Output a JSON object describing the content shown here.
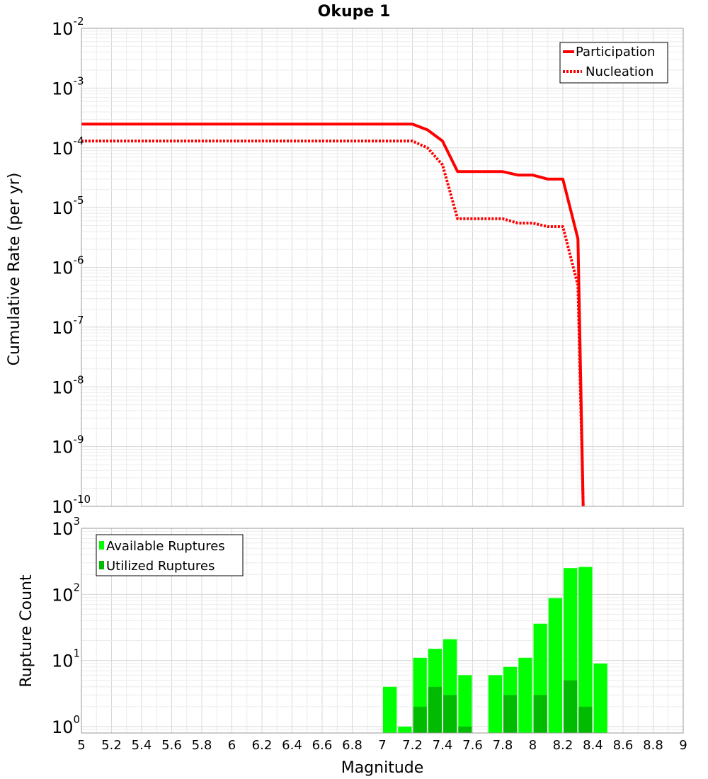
{
  "chart_data": [
    {
      "type": "line",
      "title": "Okupe 1",
      "xlabel": "",
      "ylabel": "Cumulative Rate (per yr)",
      "yscale": "log",
      "xlim": [
        5,
        9
      ],
      "ylim": [
        1e-10,
        0.01
      ],
      "y_tick_bases": [
        "10",
        "10",
        "10",
        "10",
        "10",
        "10",
        "10",
        "10",
        "10"
      ],
      "y_tick_exponents": [
        "-2",
        "-3",
        "-4",
        "-5",
        "-6",
        "-7",
        "-8",
        "-9",
        "-10"
      ],
      "y_tick_values": [
        0.01,
        0.001,
        0.0001,
        1e-05,
        1e-06,
        1e-07,
        1e-08,
        1e-09,
        1e-10
      ],
      "legend_position": "top-right",
      "series": [
        {
          "name": "Participation",
          "color": "#ff0000",
          "style": "solid",
          "x": [
            5.0,
            7.2,
            7.3,
            7.4,
            7.5,
            7.6,
            7.7,
            7.8,
            7.9,
            8.0,
            8.1,
            8.2,
            8.3,
            8.335
          ],
          "y": [
            0.00025,
            0.00025,
            0.0002,
            0.00013,
            4e-05,
            4e-05,
            4e-05,
            4e-05,
            3.5e-05,
            3.5e-05,
            3e-05,
            3e-05,
            3e-06,
            1e-10
          ]
        },
        {
          "name": "Nucleation",
          "color": "#ff0000",
          "style": "dotted",
          "x": [
            5.0,
            7.2,
            7.3,
            7.4,
            7.5,
            7.6,
            7.7,
            7.8,
            7.9,
            8.0,
            8.1,
            8.2,
            8.3,
            8.335
          ],
          "y": [
            0.00013,
            0.00013,
            0.0001,
            5.2e-05,
            6.5e-06,
            6.5e-06,
            6.5e-06,
            6.5e-06,
            5.5e-06,
            5.5e-06,
            4.8e-06,
            4.8e-06,
            5e-07,
            1e-10
          ]
        }
      ]
    },
    {
      "type": "bar",
      "xlabel": "Magnitude",
      "ylabel": "Rupture Count",
      "yscale": "log",
      "xlim": [
        5,
        9
      ],
      "ylim": [
        0.8,
        1000
      ],
      "y_tick_bases": [
        "10",
        "10",
        "10",
        "10"
      ],
      "y_tick_exponents": [
        "3",
        "2",
        "1",
        "0"
      ],
      "y_tick_values": [
        1000,
        100,
        10,
        1
      ],
      "x_ticks": [
        "5",
        "5.2",
        "5.4",
        "5.6",
        "5.8",
        "6",
        "6.2",
        "6.4",
        "6.6",
        "6.8",
        "7",
        "7.2",
        "7.4",
        "7.6",
        "7.8",
        "8",
        "8.2",
        "8.4",
        "8.6",
        "8.8",
        "9"
      ],
      "legend_position": "top-left",
      "bin_width": 0.1,
      "series": [
        {
          "name": "Available Ruptures",
          "color": "#00ff00",
          "x": [
            7.05,
            7.15,
            7.25,
            7.35,
            7.45,
            7.55,
            7.75,
            7.85,
            7.95,
            8.05,
            8.15,
            8.25,
            8.35,
            8.45
          ],
          "values": [
            4,
            1,
            11,
            15,
            21,
            6,
            6,
            8,
            11,
            36,
            88,
            250,
            260,
            9
          ]
        },
        {
          "name": "Utilized Ruptures",
          "color": "#00bb00",
          "x": [
            7.25,
            7.35,
            7.45,
            7.55,
            7.85,
            8.05,
            8.25,
            8.35
          ],
          "values": [
            2,
            4,
            3,
            1,
            3,
            3,
            5,
            2
          ]
        }
      ]
    }
  ]
}
